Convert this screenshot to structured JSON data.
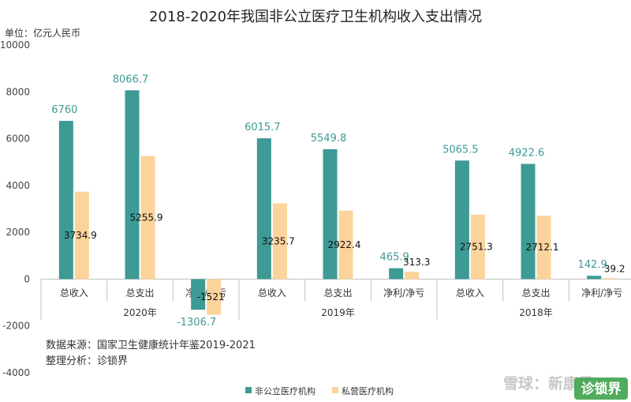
{
  "chart_data": {
    "type": "bar",
    "title": "2018-2020年我国非公立医疗卫生机构收入支出情况",
    "unit_label": "单位：亿元人民币",
    "ylim": [
      -4000,
      10000
    ],
    "yticks": [
      "10000",
      "8000",
      "6000",
      "4000",
      "2000",
      "0",
      "-2000",
      "-4000"
    ],
    "grid": false,
    "legend_position": "bottom",
    "groups": [
      {
        "year": "2020年",
        "categories": [
          "总收入",
          "总支出",
          "净利/净亏"
        ],
        "series": [
          {
            "name": "非公立医疗机构",
            "values": [
              6760,
              8066.7,
              -1306.7
            ],
            "labels": [
              "6760",
              "8066.7",
              "-1306.7"
            ]
          },
          {
            "name": "私营医疗机构",
            "values": [
              3734.9,
              5255.9,
              -1521
            ],
            "labels": [
              "3734.9",
              "5255.9",
              "-1521"
            ]
          }
        ]
      },
      {
        "year": "2019年",
        "categories": [
          "总收入",
          "总支出",
          "净利/净亏"
        ],
        "series": [
          {
            "name": "非公立医疗机构",
            "values": [
              6015.7,
              5549.8,
              465.9
            ],
            "labels": [
              "6015.7",
              "5549.8",
              "465.9"
            ]
          },
          {
            "name": "私营医疗机构",
            "values": [
              3235.7,
              2922.4,
              313.3
            ],
            "labels": [
              "3235.7",
              "2922.4",
              "313.3"
            ]
          }
        ]
      },
      {
        "year": "2018年",
        "categories": [
          "总收入",
          "总支出",
          "净利/净亏"
        ],
        "series": [
          {
            "name": "非公立医疗机构",
            "values": [
              5065.5,
              4922.6,
              142.9
            ],
            "labels": [
              "5065.5",
              "4922.6",
              "142.9"
            ]
          },
          {
            "name": "私营医疗机构",
            "values": [
              2751.3,
              2712.1,
              39.2
            ],
            "labels": [
              "2751.3",
              "2712.1",
              "39.2"
            ]
          }
        ]
      }
    ],
    "legend": [
      {
        "name": "非公立医疗机构",
        "color": "#3d9a95"
      },
      {
        "name": "私营医疗机构",
        "color": "#fcd39a"
      }
    ],
    "colors": {
      "series1": "#3d9a95",
      "series2": "#fcd39a",
      "series1_label": "#3d9a95",
      "series2_label": "#111111"
    },
    "notes": [
      "数据来源：国家卫生健康统计年鉴2019-2021",
      "整理分析：诊锁界"
    ]
  },
  "watermark": {
    "text": "雪球：新康界",
    "logo_text": "诊锁界"
  }
}
